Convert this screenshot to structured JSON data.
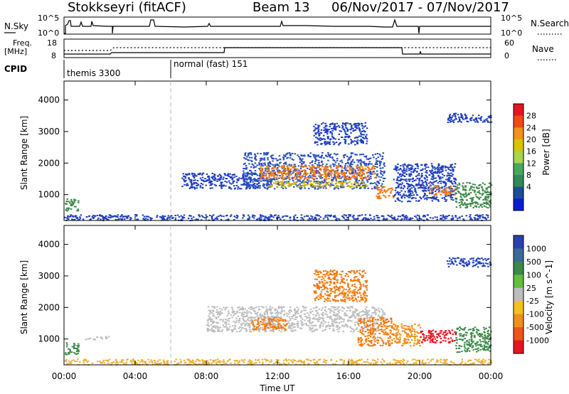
{
  "header": {
    "station": "Stokkseyri (fitACF)",
    "beam": "Beam 13",
    "date_range": "06/Nov/2017 - 07/Nov/2017"
  },
  "panels": {
    "nsky": {
      "label": "N.Sky",
      "right_label": "N.Search",
      "left_ticks": [
        "10^5",
        "10^0"
      ],
      "right_ticks": [
        "10^5",
        "10^0"
      ]
    },
    "freq": {
      "label_line1": "Freq.",
      "label_line2": "[MHz]",
      "right_label": "Nave",
      "left_ticks": [
        "18",
        "8"
      ],
      "right_ticks": [
        "60",
        "0"
      ]
    },
    "cpid": {
      "label": "CPID",
      "segments": [
        "themis 3300",
        "normal (fast) 151"
      ]
    }
  },
  "colors": {
    "scatter_blue": "#1f3fbf",
    "scatter_green": "#3c8a48",
    "scatter_orange": "#f07a10",
    "ground_grey": "#bdbdbd"
  },
  "chart_data": [
    {
      "type": "heatmap",
      "name": "power",
      "ylabel": "Slant Range [km]",
      "ylim": [
        180,
        4600
      ],
      "yticks": [
        1000,
        2000,
        3000,
        4000
      ],
      "xlim": [
        0,
        24
      ],
      "colorbar": {
        "label": "Power [dB]",
        "ticks": [
          "28",
          "24",
          "20",
          "16",
          "12",
          "8",
          "4"
        ],
        "colors": [
          "#e8141d",
          "#f24a15",
          "#f6911a",
          "#d8c500",
          "#a8d54a",
          "#46a85e",
          "#2e8b5a",
          "#1b4d98",
          "#0a1bd6"
        ]
      },
      "regions": [
        {
          "t0": 0.0,
          "t1": 0.8,
          "r0": 500,
          "r1": 900,
          "c": "#3c8a48"
        },
        {
          "t0": 0.0,
          "t1": 24.0,
          "r0": 200,
          "r1": 380,
          "c": "#1f3fbf"
        },
        {
          "t0": 6.6,
          "t1": 11.0,
          "r0": 1200,
          "r1": 1700,
          "c": "#1f3fbf"
        },
        {
          "t0": 10.0,
          "t1": 18.0,
          "r0": 1200,
          "r1": 2350,
          "c": "#2a4fbf"
        },
        {
          "t0": 11.0,
          "t1": 17.5,
          "r0": 1500,
          "r1": 1950,
          "c": "#f07a10"
        },
        {
          "t0": 11.5,
          "t1": 17.0,
          "r0": 1250,
          "r1": 1450,
          "c": "#c8b000"
        },
        {
          "t0": 14.0,
          "t1": 17.0,
          "r0": 2600,
          "r1": 3300,
          "c": "#1f3fbf"
        },
        {
          "t0": 17.5,
          "t1": 18.5,
          "r0": 900,
          "r1": 1300,
          "c": "#f07a10"
        },
        {
          "t0": 18.5,
          "t1": 22.0,
          "r0": 800,
          "r1": 2000,
          "c": "#1f3fbf"
        },
        {
          "t0": 20.5,
          "t1": 22.0,
          "r0": 1000,
          "r1": 1300,
          "c": "#f07a10"
        },
        {
          "t0": 22.0,
          "t1": 24.0,
          "r0": 600,
          "r1": 1400,
          "c": "#3c8a48"
        },
        {
          "t0": 21.5,
          "t1": 24.0,
          "r0": 3300,
          "r1": 3600,
          "c": "#1f3fbf"
        }
      ]
    },
    {
      "type": "heatmap",
      "name": "velocity",
      "ylabel": "Slant Range [km]",
      "ylim": [
        180,
        4600
      ],
      "yticks": [
        1000,
        2000,
        3000,
        4000
      ],
      "xlim": [
        0,
        24
      ],
      "xticks": [
        "00:00",
        "04:00",
        "08:00",
        "12:00",
        "16:00",
        "20:00",
        "00:00"
      ],
      "xlabel": "Time UT",
      "colorbar": {
        "label": "Velocity [m s^-1]",
        "ticks": [
          "1000",
          "500",
          "100",
          "25",
          "-25",
          "-100",
          "-500",
          "-1000"
        ],
        "colors": [
          "#2a40b0",
          "#3a6a98",
          "#3c8a48",
          "#5fc03a",
          "#bdbdbd",
          "#f6c11a",
          "#f0901a",
          "#f05515",
          "#e8141d"
        ]
      },
      "regions": [
        {
          "t0": 0.0,
          "t1": 0.8,
          "r0": 500,
          "r1": 900,
          "c": "#3c8a48"
        },
        {
          "t0": 0.0,
          "t1": 24.0,
          "r0": 200,
          "r1": 380,
          "c": "#f0b030"
        },
        {
          "t0": 1.0,
          "t1": 2.5,
          "r0": 1000,
          "r1": 1100,
          "c": "#bdbdbd"
        },
        {
          "t0": 8.0,
          "t1": 18.0,
          "r0": 1250,
          "r1": 2050,
          "c": "#bdbdbd"
        },
        {
          "t0": 10.5,
          "t1": 12.5,
          "r0": 1300,
          "r1": 1700,
          "c": "#f07a10"
        },
        {
          "t0": 14.0,
          "t1": 17.0,
          "r0": 2200,
          "r1": 3200,
          "c": "#f07a10"
        },
        {
          "t0": 16.5,
          "t1": 18.5,
          "r0": 800,
          "r1": 1700,
          "c": "#f07a10"
        },
        {
          "t0": 18.5,
          "t1": 20.0,
          "r0": 800,
          "r1": 1500,
          "c": "#f0901a"
        },
        {
          "t0": 20.0,
          "t1": 22.0,
          "r0": 900,
          "r1": 1300,
          "c": "#e8141d"
        },
        {
          "t0": 22.0,
          "t1": 24.0,
          "r0": 600,
          "r1": 1400,
          "c": "#3c8a48"
        },
        {
          "t0": 21.5,
          "t1": 24.0,
          "r0": 3300,
          "r1": 3600,
          "c": "#1f3fbf"
        }
      ]
    }
  ]
}
